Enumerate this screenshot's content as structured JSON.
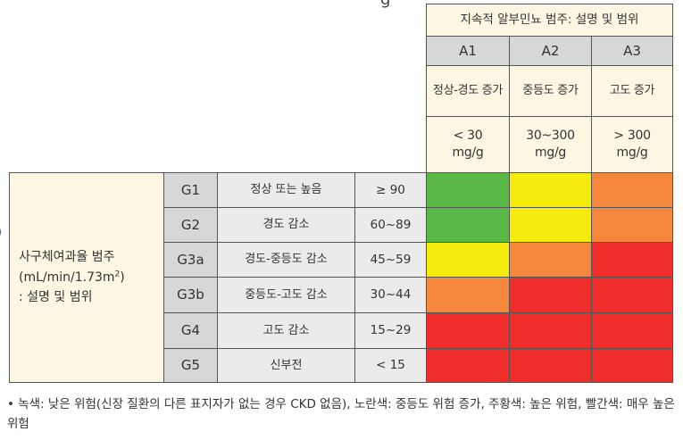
{
  "top_fragment": "g",
  "left_fragment": ")",
  "albuminuria_header": "지속적 알부민뇨 범주: 설명 및 범위",
  "albuminuria_categories": [
    {
      "code": "A1",
      "description": "정상-경도 증가",
      "range": "< 30\nmg/g"
    },
    {
      "code": "A2",
      "description": "중등도 증가",
      "range": "30~300\nmg/g"
    },
    {
      "code": "A3",
      "description": "고도 증가",
      "range": "> 300\nmg/g"
    }
  ],
  "gfr_header": {
    "line1": "사구체여과율 범주",
    "line2_prefix": "(mL/min/1.73m",
    "line2_sup": "2",
    "line2_suffix": ")",
    "line3": ": 설명 및 범위"
  },
  "gfr_categories": [
    {
      "code": "G1",
      "description": "정상 또는 높음",
      "range": "≥ 90"
    },
    {
      "code": "G2",
      "description": "경도 감소",
      "range": "60~89"
    },
    {
      "code": "G3a",
      "description": "경도-중등도 감소",
      "range": "45~59"
    },
    {
      "code": "G3b",
      "description": "중등도-고도 감소",
      "range": "30~44"
    },
    {
      "code": "G4",
      "description": "고도 감소",
      "range": "15~29"
    },
    {
      "code": "G5",
      "description": "신부전",
      "range": "< 15"
    }
  ],
  "risk_colors": {
    "green": "#5ab946",
    "yellow": "#f5ec0e",
    "orange": "#f5873c",
    "red": "#ef2d2a"
  },
  "risk_grid": [
    [
      "green",
      "yellow",
      "orange"
    ],
    [
      "green",
      "yellow",
      "orange"
    ],
    [
      "yellow",
      "orange",
      "red"
    ],
    [
      "orange",
      "red",
      "red"
    ],
    [
      "red",
      "red",
      "red"
    ],
    [
      "red",
      "red",
      "red"
    ]
  ],
  "footnote": "• 녹색: 낮은 위험(신장 질환의 다른 표지자가 없는 경우 CKD 없음), 노란색: 중등도 위험 증가, 주황색: 높은 위험, 빨간색: 매우 높은 위험"
}
